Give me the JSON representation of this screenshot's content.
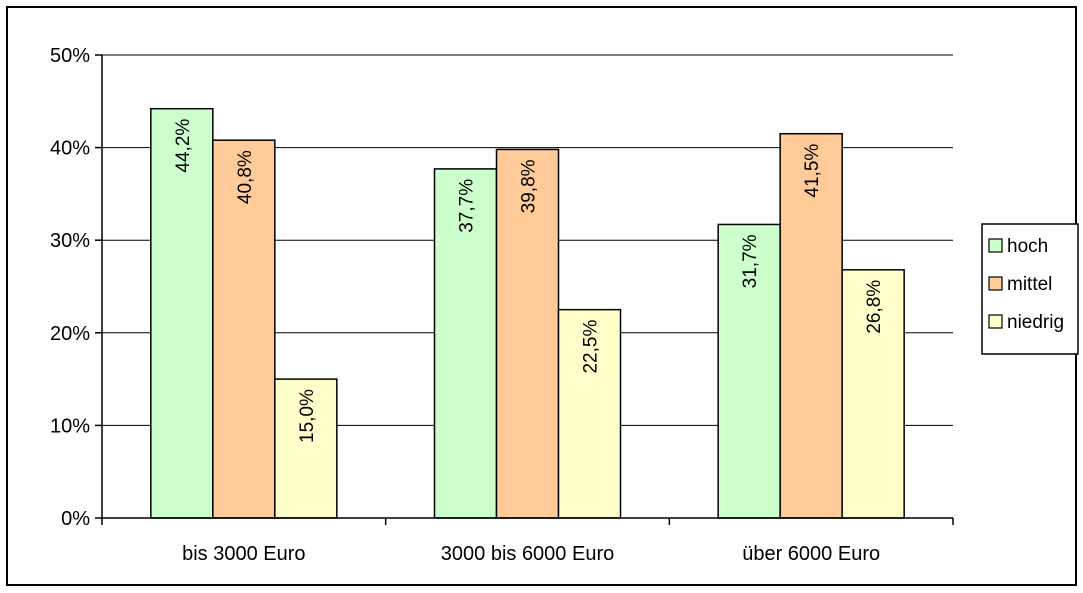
{
  "chart_data": {
    "type": "bar",
    "title": "",
    "xlabel": "",
    "ylabel": "",
    "categories": [
      "bis 3000 Euro",
      "3000 bis 6000 Euro",
      "über 6000 Euro"
    ],
    "series": [
      {
        "name": "hoch",
        "values": [
          44.2,
          37.7,
          31.7
        ],
        "labels": [
          "44,2%",
          "37,7%",
          "31,7%"
        ],
        "color": "#ccffcc"
      },
      {
        "name": "mittel",
        "values": [
          40.8,
          39.8,
          41.5
        ],
        "labels": [
          "40,8%",
          "39,8%",
          "41,5%"
        ],
        "color": "#ffcc99"
      },
      {
        "name": "niedrig",
        "values": [
          15.0,
          22.5,
          26.8
        ],
        "labels": [
          "15,0%",
          "22,5%",
          "26,8%"
        ],
        "color": "#ffffcc"
      }
    ],
    "ylim": [
      0,
      50
    ],
    "yticks": [
      0,
      10,
      20,
      30,
      40,
      50
    ],
    "ytick_labels": [
      "0%",
      "10%",
      "20%",
      "30%",
      "40%",
      "50%"
    ],
    "grid": true,
    "legend_position": "right",
    "data_labels": "rotated-inside-bar"
  }
}
